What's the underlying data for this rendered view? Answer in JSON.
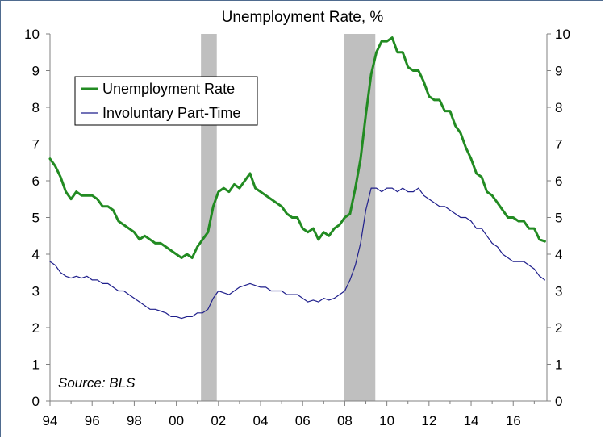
{
  "chart_data": {
    "type": "line",
    "title": "Unemployment Rate, %",
    "source": "Source: BLS",
    "ylim": [
      0,
      10
    ],
    "xlim": [
      1994,
      2017.6
    ],
    "y_ticks": [
      "0",
      "1",
      "2",
      "3",
      "4",
      "5",
      "6",
      "7",
      "8",
      "9",
      "10"
    ],
    "x_tick_labels": [
      {
        "x": 1994,
        "label": "94"
      },
      {
        "x": 1996,
        "label": "96"
      },
      {
        "x": 1998,
        "label": "98"
      },
      {
        "x": 2000,
        "label": "00"
      },
      {
        "x": 2002,
        "label": "02"
      },
      {
        "x": 2004,
        "label": "04"
      },
      {
        "x": 2006,
        "label": "06"
      },
      {
        "x": 2008,
        "label": "08"
      },
      {
        "x": 2010,
        "label": "10"
      },
      {
        "x": 2012,
        "label": "12"
      },
      {
        "x": 2014,
        "label": "14"
      },
      {
        "x": 2016,
        "label": "16"
      }
    ],
    "recessions": [
      [
        2001.17,
        2001.92
      ],
      [
        2007.95,
        2009.45
      ]
    ],
    "grid": false,
    "legend": "upper-left",
    "series": [
      {
        "name": "Unemployment Rate",
        "color": "#228b22",
        "points": [
          [
            1994.0,
            6.6
          ],
          [
            1994.25,
            6.4
          ],
          [
            1994.5,
            6.1
          ],
          [
            1994.75,
            5.7
          ],
          [
            1995.0,
            5.5
          ],
          [
            1995.25,
            5.7
          ],
          [
            1995.5,
            5.6
          ],
          [
            1995.75,
            5.6
          ],
          [
            1996.0,
            5.6
          ],
          [
            1996.25,
            5.5
          ],
          [
            1996.5,
            5.3
          ],
          [
            1996.75,
            5.3
          ],
          [
            1997.0,
            5.2
          ],
          [
            1997.25,
            4.9
          ],
          [
            1997.5,
            4.8
          ],
          [
            1997.75,
            4.7
          ],
          [
            1998.0,
            4.6
          ],
          [
            1998.25,
            4.4
          ],
          [
            1998.5,
            4.5
          ],
          [
            1998.75,
            4.4
          ],
          [
            1999.0,
            4.3
          ],
          [
            1999.25,
            4.3
          ],
          [
            1999.5,
            4.2
          ],
          [
            1999.75,
            4.1
          ],
          [
            2000.0,
            4.0
          ],
          [
            2000.25,
            3.9
          ],
          [
            2000.5,
            4.0
          ],
          [
            2000.75,
            3.9
          ],
          [
            2001.0,
            4.2
          ],
          [
            2001.25,
            4.4
          ],
          [
            2001.5,
            4.6
          ],
          [
            2001.75,
            5.3
          ],
          [
            2002.0,
            5.7
          ],
          [
            2002.25,
            5.8
          ],
          [
            2002.5,
            5.7
          ],
          [
            2002.75,
            5.9
          ],
          [
            2003.0,
            5.8
          ],
          [
            2003.25,
            6.0
          ],
          [
            2003.5,
            6.2
          ],
          [
            2003.75,
            5.8
          ],
          [
            2004.0,
            5.7
          ],
          [
            2004.25,
            5.6
          ],
          [
            2004.5,
            5.5
          ],
          [
            2004.75,
            5.4
          ],
          [
            2005.0,
            5.3
          ],
          [
            2005.25,
            5.1
          ],
          [
            2005.5,
            5.0
          ],
          [
            2005.75,
            5.0
          ],
          [
            2006.0,
            4.7
          ],
          [
            2006.25,
            4.6
          ],
          [
            2006.5,
            4.7
          ],
          [
            2006.75,
            4.4
          ],
          [
            2007.0,
            4.6
          ],
          [
            2007.25,
            4.5
          ],
          [
            2007.5,
            4.7
          ],
          [
            2007.75,
            4.8
          ],
          [
            2008.0,
            5.0
          ],
          [
            2008.25,
            5.1
          ],
          [
            2008.5,
            5.8
          ],
          [
            2008.75,
            6.6
          ],
          [
            2009.0,
            7.8
          ],
          [
            2009.25,
            8.9
          ],
          [
            2009.5,
            9.5
          ],
          [
            2009.75,
            9.8
          ],
          [
            2010.0,
            9.8
          ],
          [
            2010.25,
            9.9
          ],
          [
            2010.5,
            9.5
          ],
          [
            2010.75,
            9.5
          ],
          [
            2011.0,
            9.1
          ],
          [
            2011.25,
            9.0
          ],
          [
            2011.5,
            9.0
          ],
          [
            2011.75,
            8.7
          ],
          [
            2012.0,
            8.3
          ],
          [
            2012.25,
            8.2
          ],
          [
            2012.5,
            8.2
          ],
          [
            2012.75,
            7.9
          ],
          [
            2013.0,
            7.9
          ],
          [
            2013.25,
            7.5
          ],
          [
            2013.5,
            7.3
          ],
          [
            2013.75,
            6.9
          ],
          [
            2014.0,
            6.6
          ],
          [
            2014.25,
            6.2
          ],
          [
            2014.5,
            6.1
          ],
          [
            2014.75,
            5.7
          ],
          [
            2015.0,
            5.6
          ],
          [
            2015.25,
            5.4
          ],
          [
            2015.5,
            5.2
          ],
          [
            2015.75,
            5.0
          ],
          [
            2016.0,
            5.0
          ],
          [
            2016.25,
            4.9
          ],
          [
            2016.5,
            4.9
          ],
          [
            2016.75,
            4.7
          ],
          [
            2017.0,
            4.7
          ],
          [
            2017.25,
            4.4
          ],
          [
            2017.5,
            4.35
          ]
        ]
      },
      {
        "name": "Involuntary Part-Time",
        "color": "#1f1f8c",
        "points": [
          [
            1994.0,
            3.8
          ],
          [
            1994.25,
            3.7
          ],
          [
            1994.5,
            3.5
          ],
          [
            1994.75,
            3.4
          ],
          [
            1995.0,
            3.35
          ],
          [
            1995.25,
            3.4
          ],
          [
            1995.5,
            3.35
          ],
          [
            1995.75,
            3.4
          ],
          [
            1996.0,
            3.3
          ],
          [
            1996.25,
            3.3
          ],
          [
            1996.5,
            3.2
          ],
          [
            1996.75,
            3.2
          ],
          [
            1997.0,
            3.1
          ],
          [
            1997.25,
            3.0
          ],
          [
            1997.5,
            3.0
          ],
          [
            1997.75,
            2.9
          ],
          [
            1998.0,
            2.8
          ],
          [
            1998.25,
            2.7
          ],
          [
            1998.5,
            2.6
          ],
          [
            1998.75,
            2.5
          ],
          [
            1999.0,
            2.5
          ],
          [
            1999.25,
            2.45
          ],
          [
            1999.5,
            2.4
          ],
          [
            1999.75,
            2.3
          ],
          [
            2000.0,
            2.3
          ],
          [
            2000.25,
            2.25
          ],
          [
            2000.5,
            2.3
          ],
          [
            2000.75,
            2.3
          ],
          [
            2001.0,
            2.4
          ],
          [
            2001.25,
            2.4
          ],
          [
            2001.5,
            2.5
          ],
          [
            2001.75,
            2.8
          ],
          [
            2002.0,
            3.0
          ],
          [
            2002.25,
            2.95
          ],
          [
            2002.5,
            2.9
          ],
          [
            2002.75,
            3.0
          ],
          [
            2003.0,
            3.1
          ],
          [
            2003.25,
            3.15
          ],
          [
            2003.5,
            3.2
          ],
          [
            2003.75,
            3.15
          ],
          [
            2004.0,
            3.1
          ],
          [
            2004.25,
            3.1
          ],
          [
            2004.5,
            3.0
          ],
          [
            2004.75,
            3.0
          ],
          [
            2005.0,
            3.0
          ],
          [
            2005.25,
            2.9
          ],
          [
            2005.5,
            2.9
          ],
          [
            2005.75,
            2.9
          ],
          [
            2006.0,
            2.8
          ],
          [
            2006.25,
            2.7
          ],
          [
            2006.5,
            2.75
          ],
          [
            2006.75,
            2.7
          ],
          [
            2007.0,
            2.8
          ],
          [
            2007.25,
            2.75
          ],
          [
            2007.5,
            2.8
          ],
          [
            2007.75,
            2.9
          ],
          [
            2008.0,
            3.0
          ],
          [
            2008.25,
            3.3
          ],
          [
            2008.5,
            3.7
          ],
          [
            2008.75,
            4.3
          ],
          [
            2009.0,
            5.2
          ],
          [
            2009.25,
            5.8
          ],
          [
            2009.5,
            5.8
          ],
          [
            2009.75,
            5.7
          ],
          [
            2010.0,
            5.8
          ],
          [
            2010.25,
            5.8
          ],
          [
            2010.5,
            5.7
          ],
          [
            2010.75,
            5.8
          ],
          [
            2011.0,
            5.7
          ],
          [
            2011.25,
            5.7
          ],
          [
            2011.5,
            5.8
          ],
          [
            2011.75,
            5.6
          ],
          [
            2012.0,
            5.5
          ],
          [
            2012.25,
            5.4
          ],
          [
            2012.5,
            5.3
          ],
          [
            2012.75,
            5.3
          ],
          [
            2013.0,
            5.2
          ],
          [
            2013.25,
            5.1
          ],
          [
            2013.5,
            5.0
          ],
          [
            2013.75,
            5.0
          ],
          [
            2014.0,
            4.9
          ],
          [
            2014.25,
            4.7
          ],
          [
            2014.5,
            4.7
          ],
          [
            2014.75,
            4.5
          ],
          [
            2015.0,
            4.3
          ],
          [
            2015.25,
            4.2
          ],
          [
            2015.5,
            4.0
          ],
          [
            2015.75,
            3.9
          ],
          [
            2016.0,
            3.8
          ],
          [
            2016.25,
            3.8
          ],
          [
            2016.5,
            3.8
          ],
          [
            2016.75,
            3.7
          ],
          [
            2017.0,
            3.6
          ],
          [
            2017.25,
            3.4
          ],
          [
            2017.5,
            3.3
          ]
        ]
      }
    ]
  }
}
